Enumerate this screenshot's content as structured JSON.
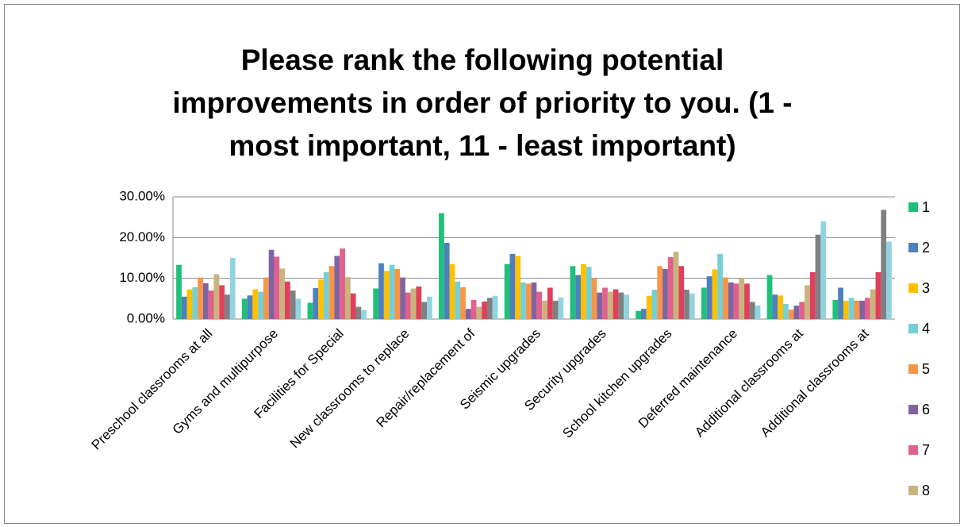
{
  "chart_data": {
    "type": "bar",
    "title": [
      "Please rank the following potential",
      "improvements in order of priority to you. (1 -",
      "most important, 11 - least important)"
    ],
    "categories": [
      "Preschool classrooms at all",
      "Gyms and multipurpose",
      "Facilities for Special",
      "New classrooms to replace",
      "Repair/replacement of",
      "Seismic upgrades",
      "Security upgrades",
      "School kitchen upgrades",
      "Deferred maintenance",
      "Additional classrooms at",
      "Additional classrooms at"
    ],
    "series": [
      {
        "name": "1",
        "color": "#1fc07a",
        "values": [
          13.3,
          5.0,
          4.0,
          7.5,
          26.0,
          13.5,
          13.0,
          2.0,
          7.7,
          10.8,
          4.7
        ]
      },
      {
        "name": "2",
        "color": "#4f7fbd",
        "values": [
          5.5,
          5.8,
          7.6,
          13.7,
          18.7,
          16.0,
          10.8,
          2.5,
          10.5,
          6.0,
          7.7
        ]
      },
      {
        "name": "3",
        "color": "#ffc000",
        "values": [
          7.3,
          7.3,
          9.7,
          11.8,
          13.5,
          15.5,
          13.5,
          5.7,
          12.2,
          5.8,
          4.5
        ]
      },
      {
        "name": "4",
        "color": "#74cfd6",
        "values": [
          7.8,
          6.7,
          11.5,
          13.3,
          9.2,
          9.0,
          12.8,
          7.2,
          16.0,
          3.7,
          5.2
        ]
      },
      {
        "name": "5",
        "color": "#f79646",
        "values": [
          10.2,
          10.2,
          13.0,
          12.3,
          7.8,
          8.7,
          10.0,
          13.0,
          10.2,
          2.3,
          4.5
        ]
      },
      {
        "name": "6",
        "color": "#8064a2",
        "values": [
          8.8,
          17.0,
          15.5,
          10.2,
          2.5,
          9.0,
          6.5,
          12.3,
          9.0,
          3.3,
          4.5
        ]
      },
      {
        "name": "7",
        "color": "#e0608e",
        "values": [
          7.0,
          15.3,
          17.3,
          6.5,
          4.7,
          6.7,
          7.7,
          15.2,
          8.7,
          4.2,
          5.2
        ]
      },
      {
        "name": "8",
        "color": "#c8b47c",
        "values": [
          11.0,
          12.4,
          10.3,
          7.5,
          3.0,
          4.5,
          6.7,
          16.5,
          10.0,
          8.3,
          7.3
        ]
      },
      {
        "color": "#e0405c",
        "values": [
          8.3,
          9.2,
          6.3,
          8.0,
          4.3,
          7.7,
          7.3,
          13.0,
          8.7,
          11.5,
          11.5
        ]
      },
      {
        "color": "#7f8081",
        "values": [
          6.0,
          7.0,
          3.0,
          4.2,
          5.2,
          4.5,
          6.5,
          7.2,
          4.2,
          20.7,
          26.8
        ]
      },
      {
        "color": "#92d3e2",
        "values": [
          15.0,
          5.0,
          2.2,
          5.5,
          5.7,
          5.3,
          6.0,
          6.3,
          3.3,
          24.0,
          19.0
        ]
      }
    ],
    "ylim": [
      0,
      30
    ],
    "yticks": [
      {
        "value": 0,
        "label": "0.00%"
      },
      {
        "value": 10,
        "label": "10.00%"
      },
      {
        "value": 20,
        "label": "20.00%"
      },
      {
        "value": 30,
        "label": "30.00%"
      }
    ],
    "grid": true
  }
}
